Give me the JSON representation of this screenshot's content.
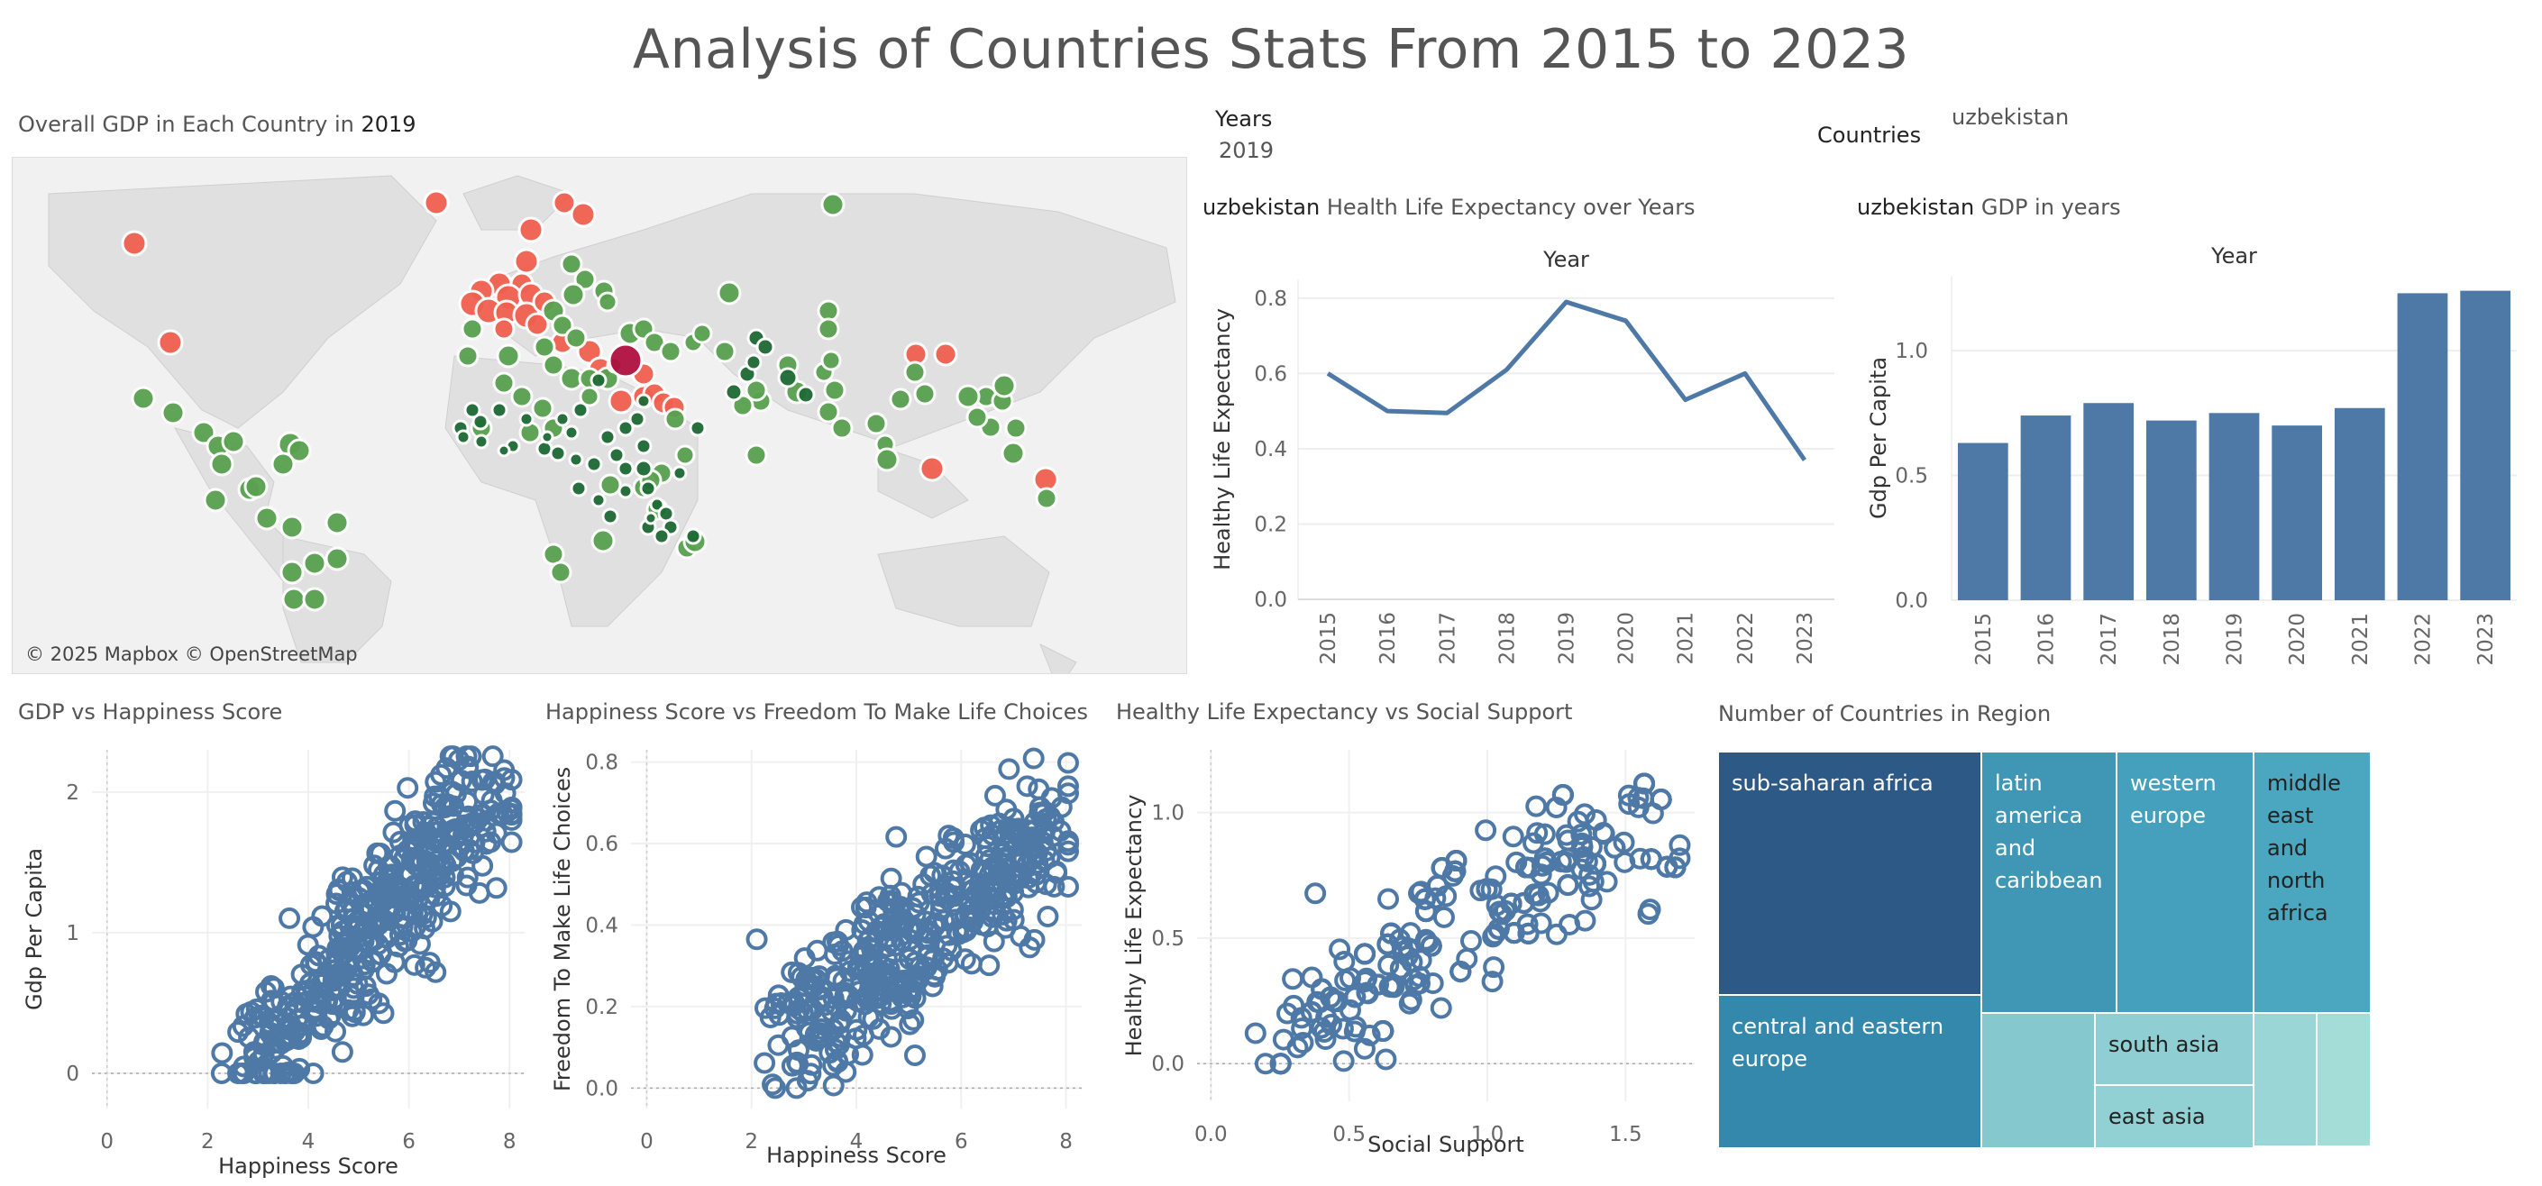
{
  "page": {
    "title": "Analysis of Countries Stats From 2015 to 2023"
  },
  "map": {
    "title_prefix": "Overall GDP in Each Country in",
    "title_year": "2019",
    "attribution": "© 2025 Mapbox © OpenStreetMap"
  },
  "filters": {
    "years_label": "Years",
    "years_value": "2019",
    "countries_label": "Countries",
    "countries_value": "uzbekistan"
  },
  "colors": {
    "bar": "#4e79a7",
    "line": "#4e79a7",
    "map_high": "#f0604f",
    "map_mid": "#59a14f",
    "map_low": "#1e6b35",
    "map_selected": "#b0113f"
  },
  "chart_data": [
    {
      "id": "life_expectancy_line",
      "type": "line",
      "title_country": "uzbekistan",
      "title": "Health Life Expectancy over Years",
      "xlabel": "Year",
      "ylabel": "Healthy Life Expectancy",
      "x": [
        "2015",
        "2016",
        "2017",
        "2018",
        "2019",
        "2020",
        "2021",
        "2022",
        "2023"
      ],
      "values": [
        0.6,
        0.5,
        0.495,
        0.61,
        0.79,
        0.74,
        0.53,
        0.6,
        0.37
      ],
      "ylim": [
        0,
        0.85
      ],
      "yticks": [
        "0.0",
        "0.2",
        "0.4",
        "0.6",
        "0.8"
      ],
      "ytick_values": [
        0,
        0.2,
        0.4,
        0.6,
        0.8
      ]
    },
    {
      "id": "gdp_bar",
      "type": "bar",
      "title_country": "uzbekistan",
      "title": "GDP in years",
      "xlabel": "Year",
      "ylabel": "Gdp Per Capita",
      "categories": [
        "2015",
        "2016",
        "2017",
        "2018",
        "2019",
        "2020",
        "2021",
        "2022",
        "2023"
      ],
      "values": [
        0.63,
        0.74,
        0.79,
        0.72,
        0.75,
        0.7,
        0.77,
        1.23,
        1.24
      ],
      "ylim": [
        0,
        1.3
      ],
      "yticks": [
        "0.0",
        "0.5",
        "1.0"
      ],
      "ytick_values": [
        0,
        0.5,
        1.0
      ]
    },
    {
      "id": "gdp_vs_happiness",
      "type": "scatter",
      "title": "GDP vs Happiness Score",
      "xlabel": "Happiness Score",
      "ylabel": "Gdp Per Capita",
      "xlim": [
        -0.3,
        8.3
      ],
      "ylim": [
        -0.25,
        2.3
      ],
      "xticks": [
        "0",
        "2",
        "4",
        "6",
        "8"
      ],
      "xtick_values": [
        0,
        2,
        4,
        6,
        8
      ],
      "yticks": [
        "0",
        "1",
        "2"
      ],
      "ytick_values": [
        0,
        1,
        2
      ],
      "trend": {
        "x0": 2.8,
        "y0": 0.0,
        "x1": 7.8,
        "y1": 2.1,
        "spread_x": 0.9,
        "spread_y": 0.38
      },
      "count": 420
    },
    {
      "id": "happiness_vs_freedom",
      "type": "scatter",
      "title": "Happiness Score vs Freedom To Make Life Choices",
      "xlabel": "Happiness Score",
      "ylabel": "Freedom To Make Life Choices",
      "xlim": [
        -0.3,
        8.3
      ],
      "ylim": [
        -0.05,
        0.83
      ],
      "xticks": [
        "0",
        "2",
        "4",
        "6",
        "8"
      ],
      "xtick_values": [
        0,
        2,
        4,
        6,
        8
      ],
      "yticks": [
        "0.0",
        "0.2",
        "0.4",
        "0.6",
        "0.8"
      ],
      "ytick_values": [
        0,
        0.2,
        0.4,
        0.6,
        0.8
      ],
      "trend": {
        "x0": 2.8,
        "y0": 0.12,
        "x1": 7.8,
        "y1": 0.65,
        "spread_x": 1.0,
        "spread_y": 0.13
      },
      "count": 420
    },
    {
      "id": "life_vs_social",
      "type": "scatter",
      "title": "Healthy Life Expectancy vs Social Support",
      "xlabel": "Social Support",
      "ylabel": "Healthy Life Expectancy",
      "xlim": [
        -0.05,
        1.75
      ],
      "ylim": [
        -0.15,
        1.25
      ],
      "xticks": [
        "0.0",
        "0.5",
        "1.0",
        "1.5"
      ],
      "xtick_values": [
        0,
        0.5,
        1.0,
        1.5
      ],
      "yticks": [
        "0.0",
        "0.5",
        "1.0"
      ],
      "ytick_values": [
        0,
        0.5,
        1.0
      ],
      "trend": {
        "x0": 0.25,
        "y0": 0.1,
        "x1": 1.55,
        "y1": 0.95,
        "spread_x": 0.3,
        "spread_y": 0.22
      },
      "count": 420
    },
    {
      "id": "region_treemap",
      "type": "treemap",
      "title": "Number of Countries in Region",
      "regions": [
        {
          "label": "sub-saharan africa",
          "color": "#2d5986"
        },
        {
          "label": "latin america and caribbean",
          "color": "#3f96b5"
        },
        {
          "label": "western europe",
          "color": "#44a0bc"
        },
        {
          "label": "middle east and north africa",
          "color": "#4aa7bf"
        },
        {
          "label": "central and eastern europe",
          "color": "#3388ab"
        },
        {
          "label": "",
          "color": "#85c8ce"
        },
        {
          "label": "south asia",
          "color": "#8fcfd3"
        },
        {
          "label": "east asia",
          "color": "#91d1d4"
        },
        {
          "label": "",
          "color": "#9bd6d6"
        },
        {
          "label": "",
          "color": "#a4dcd8"
        }
      ]
    }
  ]
}
